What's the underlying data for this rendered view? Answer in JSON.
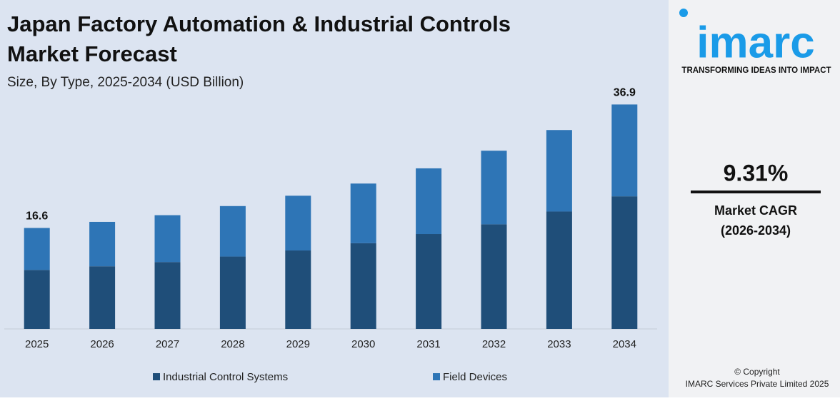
{
  "chart_data": {
    "type": "stacked_bar",
    "title": "Japan Factory Automation & Industrial Controls Market Forecast",
    "subtitle": "Size, By Type, 2025-2034 (USD Billion)",
    "categories": [
      "2025",
      "2026",
      "2027",
      "2028",
      "2029",
      "2030",
      "2031",
      "2032",
      "2033",
      "2034"
    ],
    "series": [
      {
        "name": "Industrial Control Systems",
        "color": "#1f4e79",
        "values": [
          9.7,
          10.3,
          11.0,
          11.9,
          12.9,
          14.1,
          15.6,
          17.2,
          19.3,
          21.8
        ]
      },
      {
        "name": "Field Devices",
        "color": "#2e75b6",
        "values": [
          6.9,
          7.3,
          7.7,
          8.3,
          9.0,
          9.8,
          10.8,
          12.1,
          13.4,
          15.1
        ]
      }
    ],
    "annotations": [
      {
        "x": "2025",
        "text": "16.6"
      },
      {
        "x": "2034",
        "text": "36.9"
      }
    ],
    "ylim": [
      0,
      40
    ],
    "legend": "bottom"
  },
  "sidebar": {
    "logo": "imarc",
    "tagline": "TRANSFORMING IDEAS INTO IMPACT",
    "cagr": "9.31%",
    "cagr_label": "Market CAGR",
    "cagr_period": "(2026-2034)",
    "copyright": "© Copyright",
    "company": "IMARC Services Private Limited 2025"
  }
}
